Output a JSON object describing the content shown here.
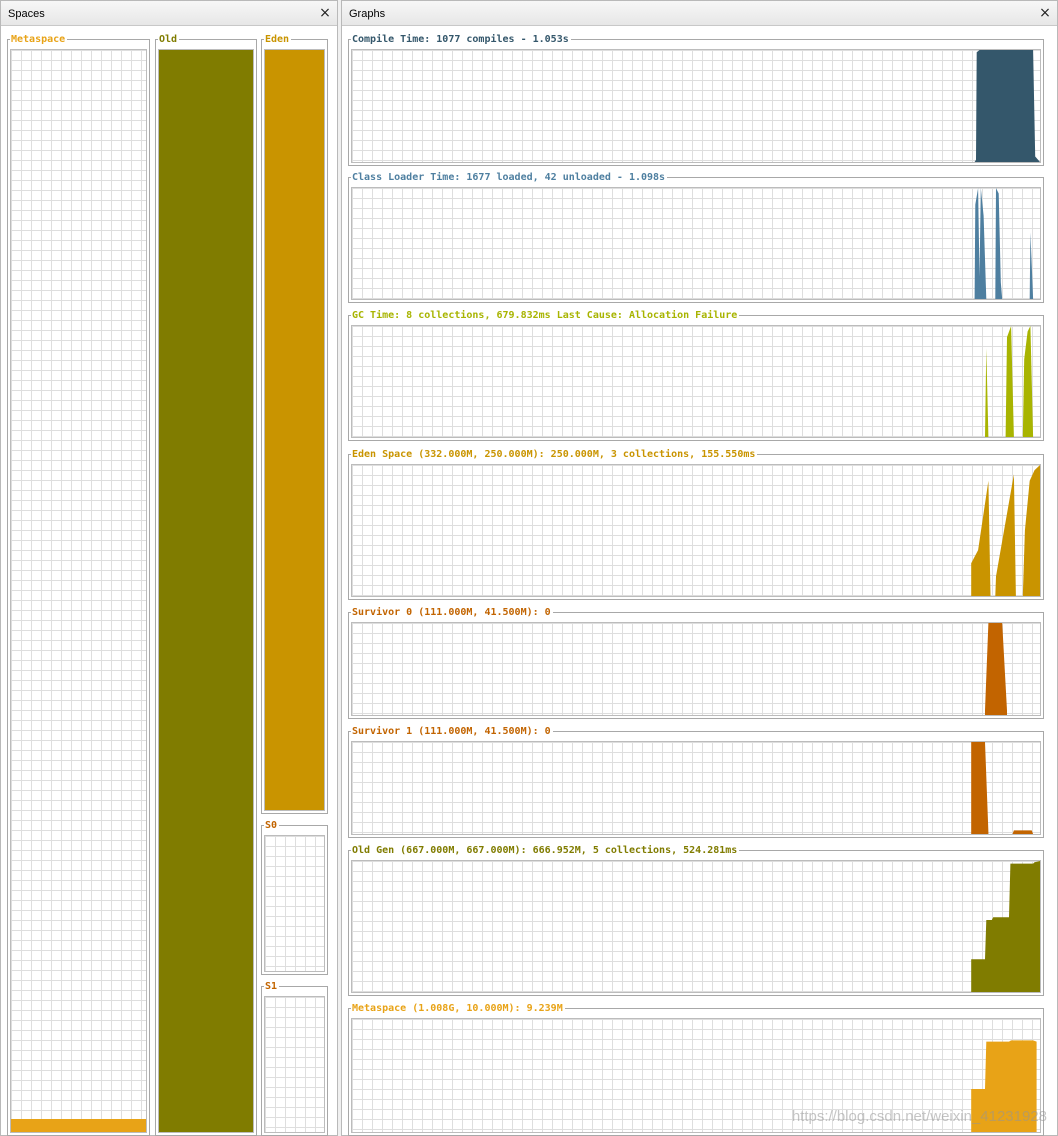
{
  "spaces": {
    "title": "Spaces",
    "close_icon": "close-icon",
    "metaspace": {
      "label": "Metaspace",
      "color": "#e8a317",
      "used_fraction": 0.012
    },
    "old": {
      "label": "Old",
      "color": "#807c00",
      "used_fraction": 1.0
    },
    "eden": {
      "label": "Eden",
      "color": "#c99400",
      "used_fraction": 1.0
    },
    "s0": {
      "label": "S0",
      "color": "#c26400",
      "used_fraction": 0.0
    },
    "s1": {
      "label": "S1",
      "color": "#c26400",
      "used_fraction": 0.0
    }
  },
  "graphs": {
    "title": "Graphs",
    "close_icon": "close-icon",
    "items": [
      {
        "id": "compile-time",
        "label": "Compile Time: 1077 compiles - 1.053s",
        "color": "#34576b",
        "series": [
          [
            0.905,
            0
          ],
          [
            0.907,
            0.02
          ],
          [
            0.908,
            0.98
          ],
          [
            0.912,
            1
          ],
          [
            0.99,
            1
          ],
          [
            0.993,
            0.05
          ],
          [
            1,
            0
          ]
        ]
      },
      {
        "id": "class-loader-time",
        "label": "Class Loader Time: 1677 loaded, 42 unloaded - 1.098s",
        "color": "#4e7fa0",
        "series": [
          [
            0.905,
            0
          ],
          [
            0.906,
            0.85
          ],
          [
            0.91,
            1
          ],
          [
            0.912,
            0.2
          ],
          [
            0.914,
            1
          ],
          [
            0.918,
            0.75
          ],
          [
            0.922,
            0
          ],
          [
            0.935,
            0
          ],
          [
            0.936,
            1
          ],
          [
            0.94,
            0.95
          ],
          [
            0.943,
            0.15
          ],
          [
            0.945,
            0
          ],
          [
            0.985,
            0
          ],
          [
            0.986,
            0.6
          ],
          [
            0.99,
            0
          ]
        ]
      },
      {
        "id": "gc-time",
        "label": "GC Time: 8 collections, 679.832ms Last Cause: Allocation Failure",
        "color": "#a8b400",
        "series": [
          [
            0.92,
            0
          ],
          [
            0.922,
            0.8
          ],
          [
            0.925,
            0
          ],
          [
            0.95,
            0
          ],
          [
            0.952,
            0.9
          ],
          [
            0.958,
            1
          ],
          [
            0.962,
            0
          ],
          [
            0.975,
            0
          ],
          [
            0.977,
            0.7
          ],
          [
            0.982,
            0.95
          ],
          [
            0.986,
            1
          ],
          [
            0.99,
            0
          ]
        ]
      },
      {
        "id": "eden-space",
        "label": "Eden Space (332.000M, 250.000M): 250.000M, 3 collections, 155.550ms",
        "color": "#c99400",
        "series": [
          [
            0.9,
            0
          ],
          [
            0.9,
            0.25
          ],
          [
            0.91,
            0.35
          ],
          [
            0.925,
            0.88
          ],
          [
            0.928,
            0
          ],
          [
            0.935,
            0
          ],
          [
            0.936,
            0.15
          ],
          [
            0.962,
            0.93
          ],
          [
            0.965,
            0
          ],
          [
            0.975,
            0
          ],
          [
            0.978,
            0.5
          ],
          [
            0.985,
            0.88
          ],
          [
            0.992,
            0.96
          ],
          [
            1,
            1
          ]
        ]
      },
      {
        "id": "survivor-0",
        "label": "Survivor 0 (111.000M, 41.500M): 0",
        "color": "#c26400",
        "series": [
          [
            0.92,
            0
          ],
          [
            0.92,
            0.05
          ],
          [
            0.925,
            1
          ],
          [
            0.945,
            1
          ],
          [
            0.952,
            0.05
          ],
          [
            0.952,
            0
          ]
        ]
      },
      {
        "id": "survivor-1",
        "label": "Survivor 1 (111.000M, 41.500M): 0",
        "color": "#c26400",
        "series": [
          [
            0.9,
            0
          ],
          [
            0.9,
            1
          ],
          [
            0.92,
            1
          ],
          [
            0.925,
            0.02
          ],
          [
            0.925,
            0
          ],
          [
            0.96,
            0
          ],
          [
            0.962,
            0.04
          ],
          [
            0.988,
            0.04
          ],
          [
            0.99,
            0
          ]
        ]
      },
      {
        "id": "old-gen",
        "label": "Old Gen (667.000M, 667.000M): 666.952M, 5 collections, 524.281ms",
        "color": "#807c00",
        "series": [
          [
            0.9,
            0
          ],
          [
            0.9,
            0.25
          ],
          [
            0.92,
            0.25
          ],
          [
            0.922,
            0.55
          ],
          [
            0.93,
            0.55
          ],
          [
            0.932,
            0.57
          ],
          [
            0.955,
            0.57
          ],
          [
            0.957,
            0.98
          ],
          [
            0.99,
            0.98
          ],
          [
            0.992,
            0.99
          ],
          [
            1,
            1
          ]
        ]
      },
      {
        "id": "metaspace-graph",
        "label": "Metaspace (1.008G, 10.000M): 9.239M",
        "color": "#e8a317",
        "series": [
          [
            0.9,
            0
          ],
          [
            0.9,
            0.38
          ],
          [
            0.92,
            0.38
          ],
          [
            0.922,
            0.8
          ],
          [
            0.955,
            0.8
          ],
          [
            0.958,
            0.81
          ],
          [
            0.99,
            0.81
          ],
          [
            0.995,
            0.8
          ]
        ]
      }
    ]
  },
  "watermark": "https://blog.csdn.net/weixin_41231928"
}
